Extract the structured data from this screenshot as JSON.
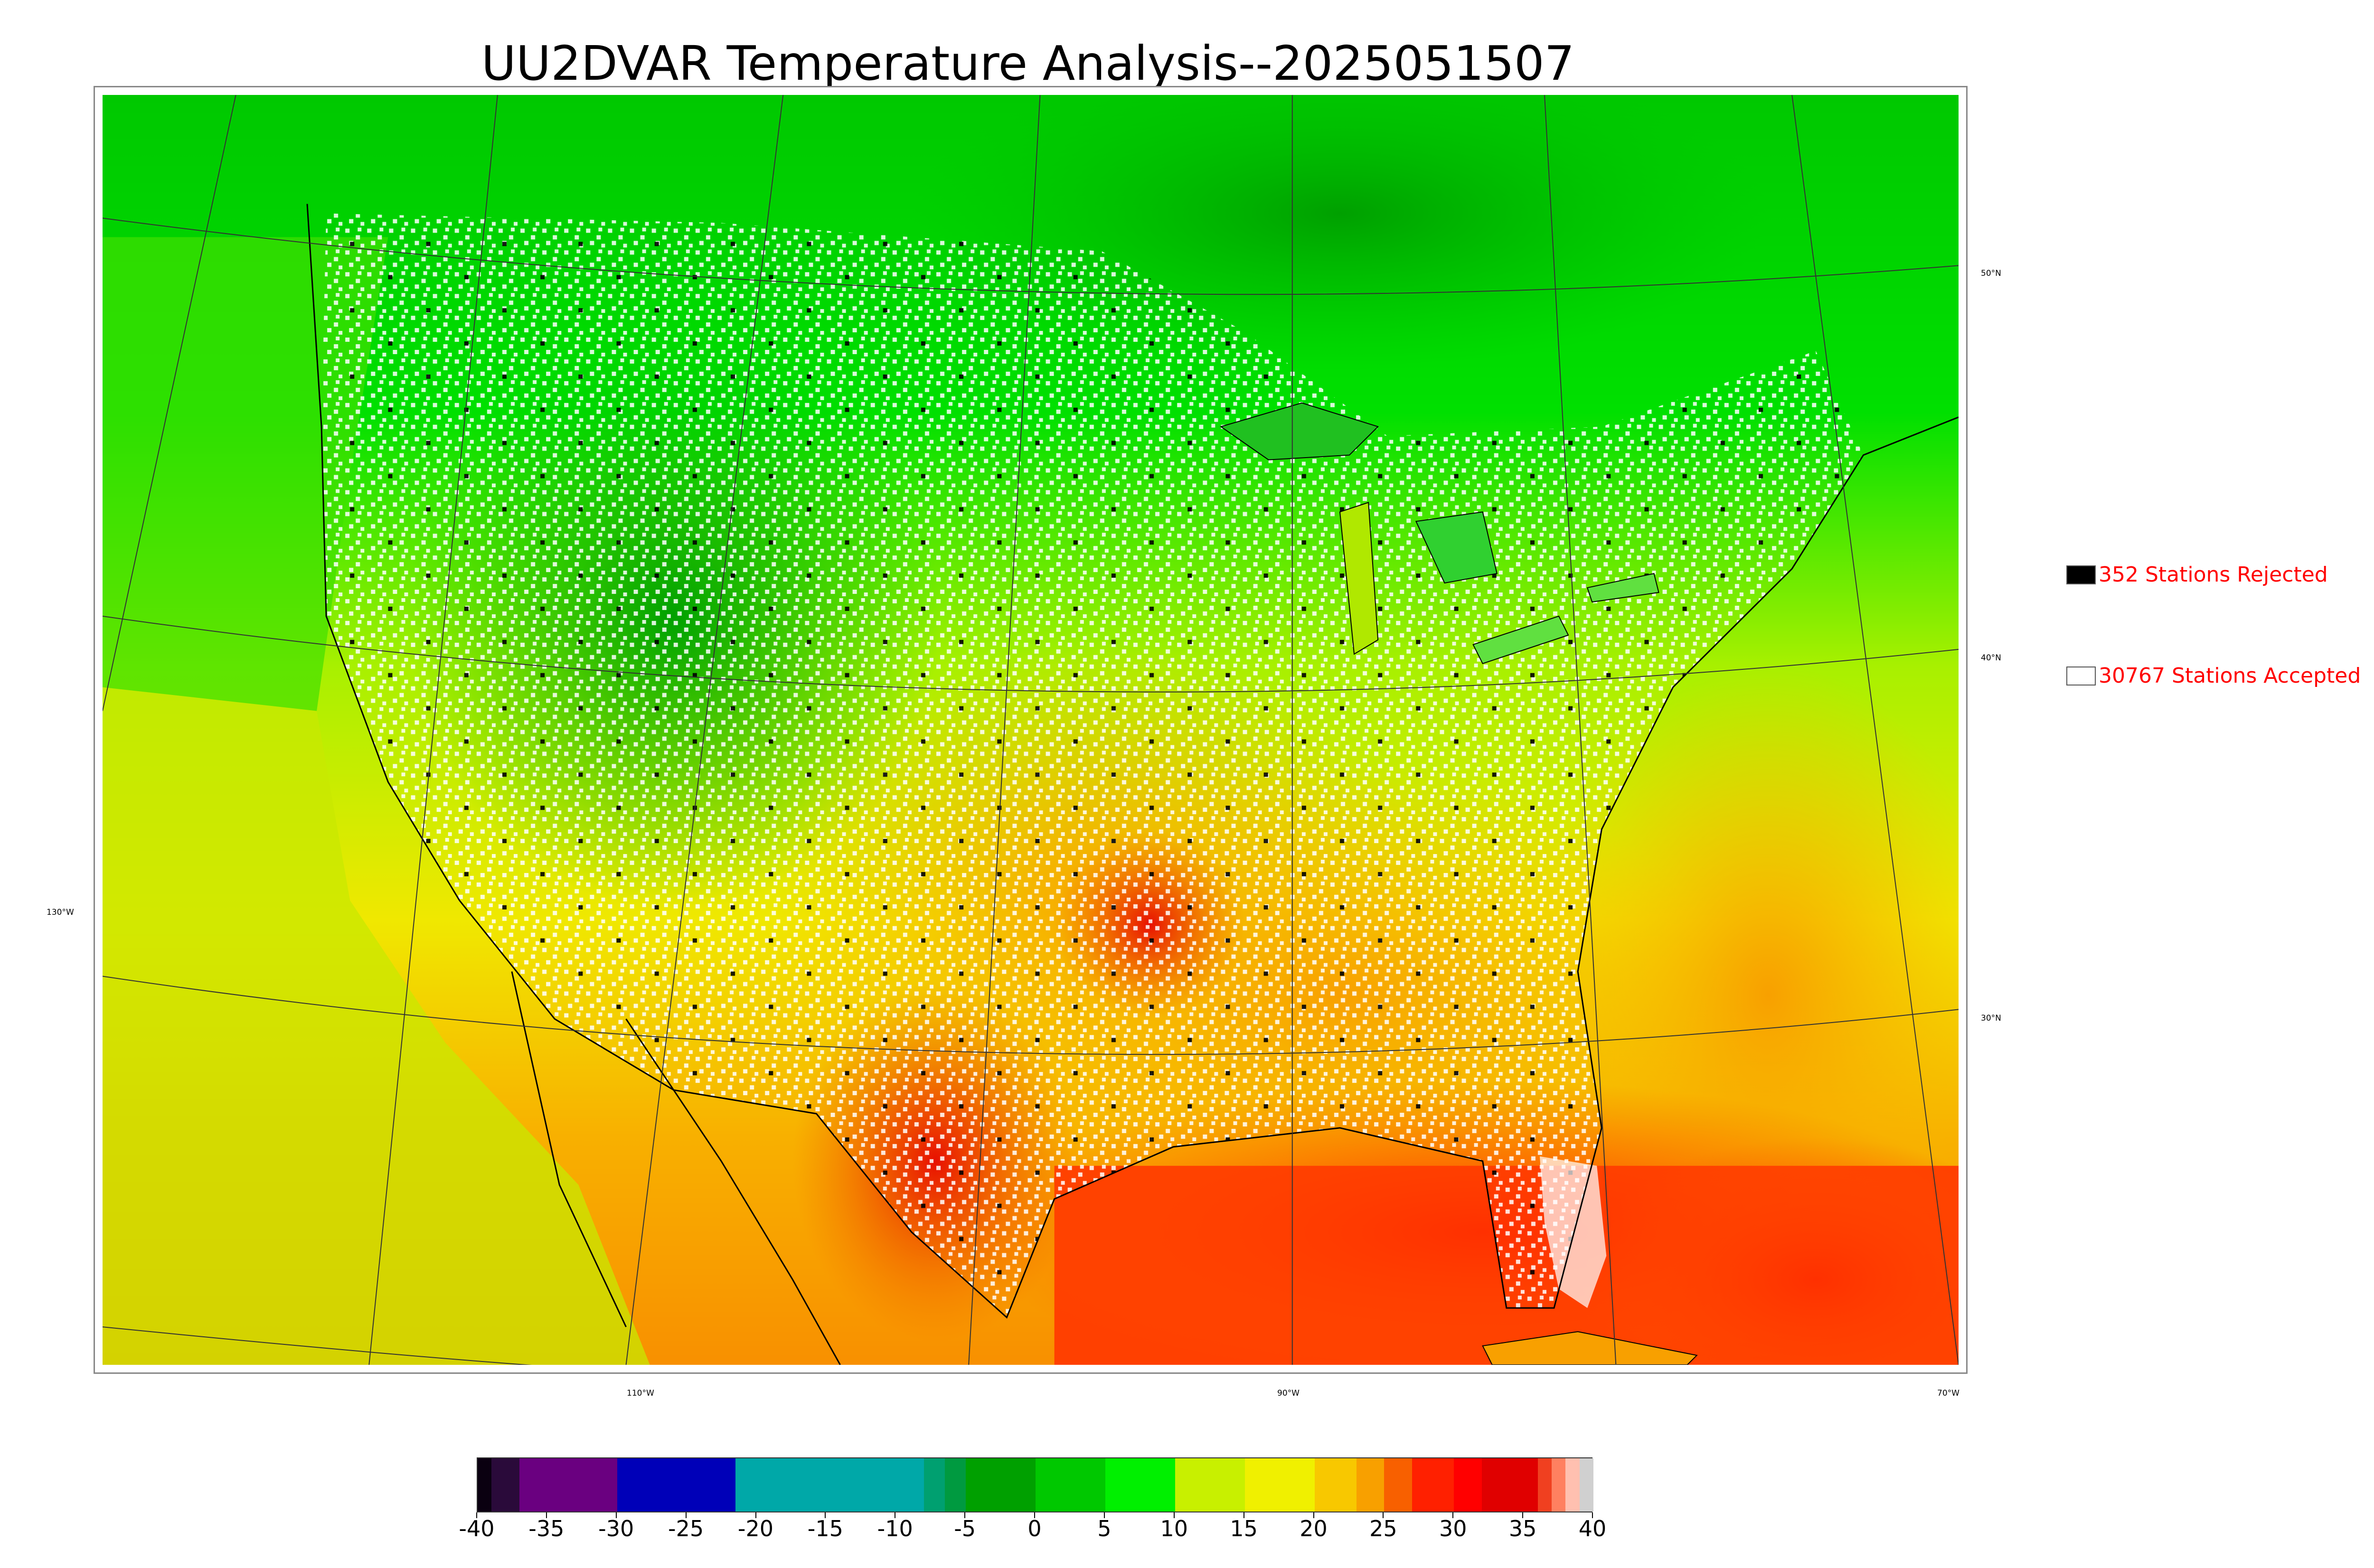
{
  "title": "UU2DVAR Temperature Analysis--2025051507",
  "legend": {
    "rejected": {
      "label": "352 Stations Rejected",
      "color": "#000000"
    },
    "accepted": {
      "label": "30767 Stations Accepted",
      "color": "#ffffff"
    },
    "text_color": "#ff0000"
  },
  "graticule": {
    "lat_labels": [
      "50°N",
      "40°N",
      "30°N"
    ],
    "lon_labels": [
      "130°W",
      "110°W",
      "90°W",
      "70°W"
    ]
  },
  "colorbar": {
    "ticks": [
      "-40",
      "-35",
      "-30",
      "-25",
      "-20",
      "-15",
      "-10",
      "-5",
      "0",
      "5",
      "10",
      "15",
      "20",
      "25",
      "30",
      "35",
      "40"
    ],
    "range": [
      -40,
      40
    ],
    "segments": [
      {
        "from": -40,
        "to": -39,
        "color": "#0a0010"
      },
      {
        "from": -39,
        "to": -37,
        "color": "#2a0a3a"
      },
      {
        "from": -37,
        "to": -30,
        "color": "#6a0080"
      },
      {
        "from": -30,
        "to": -21.5,
        "color": "#0000b8"
      },
      {
        "from": -21.5,
        "to": -8,
        "color": "#00a8a8"
      },
      {
        "from": -8,
        "to": -6.5,
        "color": "#00a070"
      },
      {
        "from": -6.5,
        "to": -5,
        "color": "#009a40"
      },
      {
        "from": -5,
        "to": 0,
        "color": "#00a000"
      },
      {
        "from": 0,
        "to": 5,
        "color": "#00c800"
      },
      {
        "from": 5,
        "to": 10,
        "color": "#00f000"
      },
      {
        "from": 10,
        "to": 15,
        "color": "#c8f000"
      },
      {
        "from": 15,
        "to": 20,
        "color": "#f0f000"
      },
      {
        "from": 20,
        "to": 23,
        "color": "#f8c800"
      },
      {
        "from": 23,
        "to": 25,
        "color": "#f8a000"
      },
      {
        "from": 25,
        "to": 27,
        "color": "#f86000"
      },
      {
        "from": 27,
        "to": 30,
        "color": "#ff2000"
      },
      {
        "from": 30,
        "to": 32,
        "color": "#ff0000"
      },
      {
        "from": 32,
        "to": 36,
        "color": "#e00000"
      },
      {
        "from": 36,
        "to": 37,
        "color": "#f04020"
      },
      {
        "from": 37,
        "to": 38,
        "color": "#ff8060"
      },
      {
        "from": 38,
        "to": 39,
        "color": "#ffc0b0"
      },
      {
        "from": 39,
        "to": 40,
        "color": "#d0d0d0"
      }
    ]
  }
}
